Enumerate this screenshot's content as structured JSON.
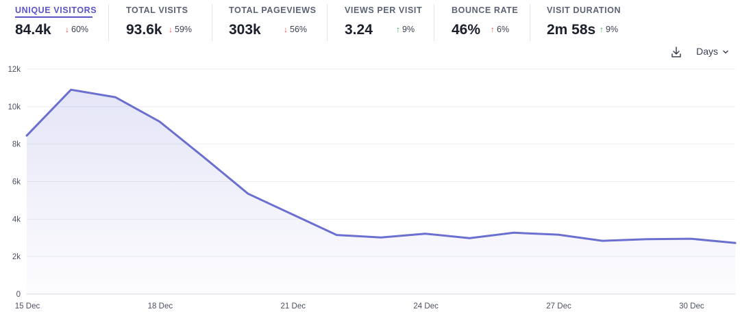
{
  "metrics": [
    {
      "key": "unique_visitors",
      "label": "UNIQUE VISITORS",
      "value": "84.4k",
      "change": "60%",
      "direction": "down",
      "active": true
    },
    {
      "key": "total_visits",
      "label": "TOTAL VISITS",
      "value": "93.6k",
      "change": "59%",
      "direction": "down",
      "active": false
    },
    {
      "key": "total_pageviews",
      "label": "TOTAL PAGEVIEWS",
      "value": "303k",
      "change": "56%",
      "direction": "down",
      "active": false
    },
    {
      "key": "views_per_visit",
      "label": "VIEWS PER VISIT",
      "value": "3.24",
      "change": "9%",
      "direction": "up",
      "active": false
    },
    {
      "key": "bounce_rate",
      "label": "BOUNCE RATE",
      "value": "46%",
      "change": "6%",
      "direction": "up",
      "active": false
    },
    {
      "key": "visit_duration",
      "label": "VISIT DURATION",
      "value": "2m 58s",
      "change": "9%",
      "direction": "up",
      "active": false
    }
  ],
  "controls": {
    "download_icon": "download-icon",
    "interval_label": "Days",
    "interval_icon": "chevron-down-icon"
  },
  "colors": {
    "accent": "#5b54c7",
    "line": "#6b6fd0",
    "change_down": "#e5484d",
    "change_up_good": "#2ea44f",
    "change_up_bad": "#e5484d"
  },
  "chart_data": {
    "type": "area",
    "title": "",
    "xlabel": "",
    "ylabel": "",
    "x": [
      "15 Dec",
      "16 Dec",
      "17 Dec",
      "18 Dec",
      "19 Dec",
      "20 Dec",
      "21 Dec",
      "22 Dec",
      "23 Dec",
      "24 Dec",
      "25 Dec",
      "26 Dec",
      "27 Dec",
      "28 Dec",
      "29 Dec",
      "30 Dec",
      "31 Dec"
    ],
    "x_tick_labels": [
      "15 Dec",
      "18 Dec",
      "21 Dec",
      "24 Dec",
      "27 Dec",
      "30 Dec"
    ],
    "series": [
      {
        "values": [
          8450,
          10900,
          10500,
          9200,
          7300,
          5350,
          4250,
          3150,
          3020,
          3220,
          2980,
          3270,
          3170,
          2840,
          2930,
          2950,
          2730
        ]
      }
    ],
    "ylim": [
      0,
      12000
    ],
    "y_ticks": [
      0,
      2000,
      4000,
      6000,
      8000,
      10000,
      12000
    ],
    "y_tick_labels": [
      "0",
      "2k",
      "4k",
      "6k",
      "8k",
      "10k",
      "12k"
    ],
    "grid": true,
    "legend": "none"
  }
}
